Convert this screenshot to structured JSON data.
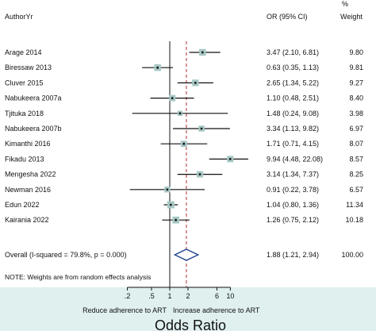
{
  "chart_data": {
    "type": "forest",
    "header": {
      "study_col": "AuthorYr",
      "or_col": "OR (95% CI)",
      "weight_col_line1": "%",
      "weight_col_line2": "Weight"
    },
    "studies": [
      {
        "label": "Arage 2014",
        "or": 3.47,
        "lo": 2.1,
        "hi": 6.81,
        "ci_text": "3.47 (2.10, 6.81)",
        "weight": 9.8,
        "weight_text": "9.80"
      },
      {
        "label": "Biressaw 2013",
        "or": 0.63,
        "lo": 0.35,
        "hi": 1.13,
        "ci_text": "0.63 (0.35, 1.13)",
        "weight": 9.81,
        "weight_text": "9.81"
      },
      {
        "label": "Cluver 2015",
        "or": 2.65,
        "lo": 1.34,
        "hi": 5.22,
        "ci_text": "2.65 (1.34, 5.22)",
        "weight": 9.27,
        "weight_text": "9.27"
      },
      {
        "label": "Nabukeera 2007a",
        "or": 1.1,
        "lo": 0.48,
        "hi": 2.51,
        "ci_text": "1.10 (0.48, 2.51)",
        "weight": 8.4,
        "weight_text": "8.40"
      },
      {
        "label": "Tjituka 2018",
        "or": 1.48,
        "lo": 0.24,
        "hi": 9.08,
        "ci_text": "1.48 (0.24, 9.08)",
        "weight": 3.98,
        "weight_text": "3.98"
      },
      {
        "label": "Nabukeera 2007b",
        "or": 3.34,
        "lo": 1.13,
        "hi": 9.82,
        "ci_text": "3.34 (1.13, 9.82)",
        "weight": 6.97,
        "weight_text": "6.97"
      },
      {
        "label": "Kimanthi 2016",
        "or": 1.71,
        "lo": 0.71,
        "hi": 4.15,
        "ci_text": "1.71 (0.71, 4.15)",
        "weight": 8.07,
        "weight_text": "8.07"
      },
      {
        "label": "Fikadu 2013",
        "or": 9.94,
        "lo": 4.48,
        "hi": 22.08,
        "ci_text": "9.94 (4.48, 22.08)",
        "weight": 8.57,
        "weight_text": "8.57"
      },
      {
        "label": "Mengesha 2022",
        "or": 3.14,
        "lo": 1.34,
        "hi": 7.37,
        "ci_text": "3.14 (1.34, 7.37)",
        "weight": 8.25,
        "weight_text": "8.25"
      },
      {
        "label": "Newman 2016",
        "or": 0.91,
        "lo": 0.22,
        "hi": 3.78,
        "ci_text": "0.91 (0.22, 3.78)",
        "weight": 6.57,
        "weight_text": "6.57"
      },
      {
        "label": "Edun 2022",
        "or": 1.04,
        "lo": 0.8,
        "hi": 1.36,
        "ci_text": "1.04 (0.80, 1.36)",
        "weight": 11.34,
        "weight_text": "11.34"
      },
      {
        "label": "Kairania 2022",
        "or": 1.26,
        "lo": 0.75,
        "hi": 2.12,
        "ci_text": "1.26 (0.75, 2.12)",
        "weight": 10.18,
        "weight_text": "10.18"
      }
    ],
    "overall": {
      "label": "Overall  (I-squared = 79.8%, p = 0.000)",
      "or": 1.88,
      "lo": 1.21,
      "hi": 2.94,
      "ci_text": "1.88 (1.21, 2.94)",
      "weight_text": "100.00"
    },
    "note": "NOTE: Weights are from random effects analysis",
    "x_scale": "log",
    "x_ticks": [
      {
        "value": 0.2,
        "label": ".2"
      },
      {
        "value": 0.5,
        "label": ".5"
      },
      {
        "value": 1,
        "label": "1"
      },
      {
        "value": 2,
        "label": "2"
      },
      {
        "value": 6,
        "label": "6"
      },
      {
        "value": 10,
        "label": "10"
      }
    ],
    "null_line": 1,
    "xlabel_left": "Reduce adherence to ART",
    "xlabel_right": "Increase adherence to ART",
    "xlabel": "Odds Ratio",
    "colors": {
      "background": "#dff0ef",
      "panel": "#ffffff",
      "marker": "#a6c7c4",
      "overall_line": "#b03030",
      "diamond": "#1a3d8f",
      "axis": "#111111"
    }
  }
}
